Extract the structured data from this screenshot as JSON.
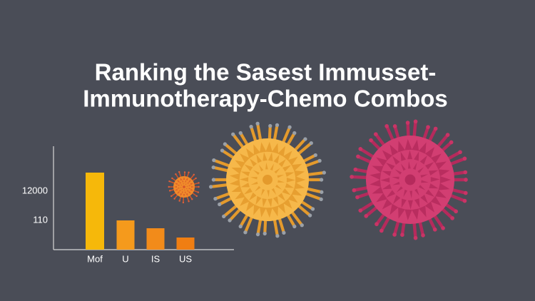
{
  "chart_data": {
    "type": "bar",
    "title": [
      "Ranking the Sasest Immusset-",
      "Immunotherapy-Chemo Combos"
    ],
    "categories": [
      "Mof",
      "U",
      "IS",
      "US"
    ],
    "values": [
      19540,
      110,
      -3080,
      -6850
    ],
    "colors": [
      "#f6b80a",
      "#f59a1c",
      "#f28b1a",
      "#f07e12"
    ],
    "ylim": [
      -11780,
      30270
    ],
    "yticks": [
      12000,
      110
    ],
    "grid": false
  }
}
